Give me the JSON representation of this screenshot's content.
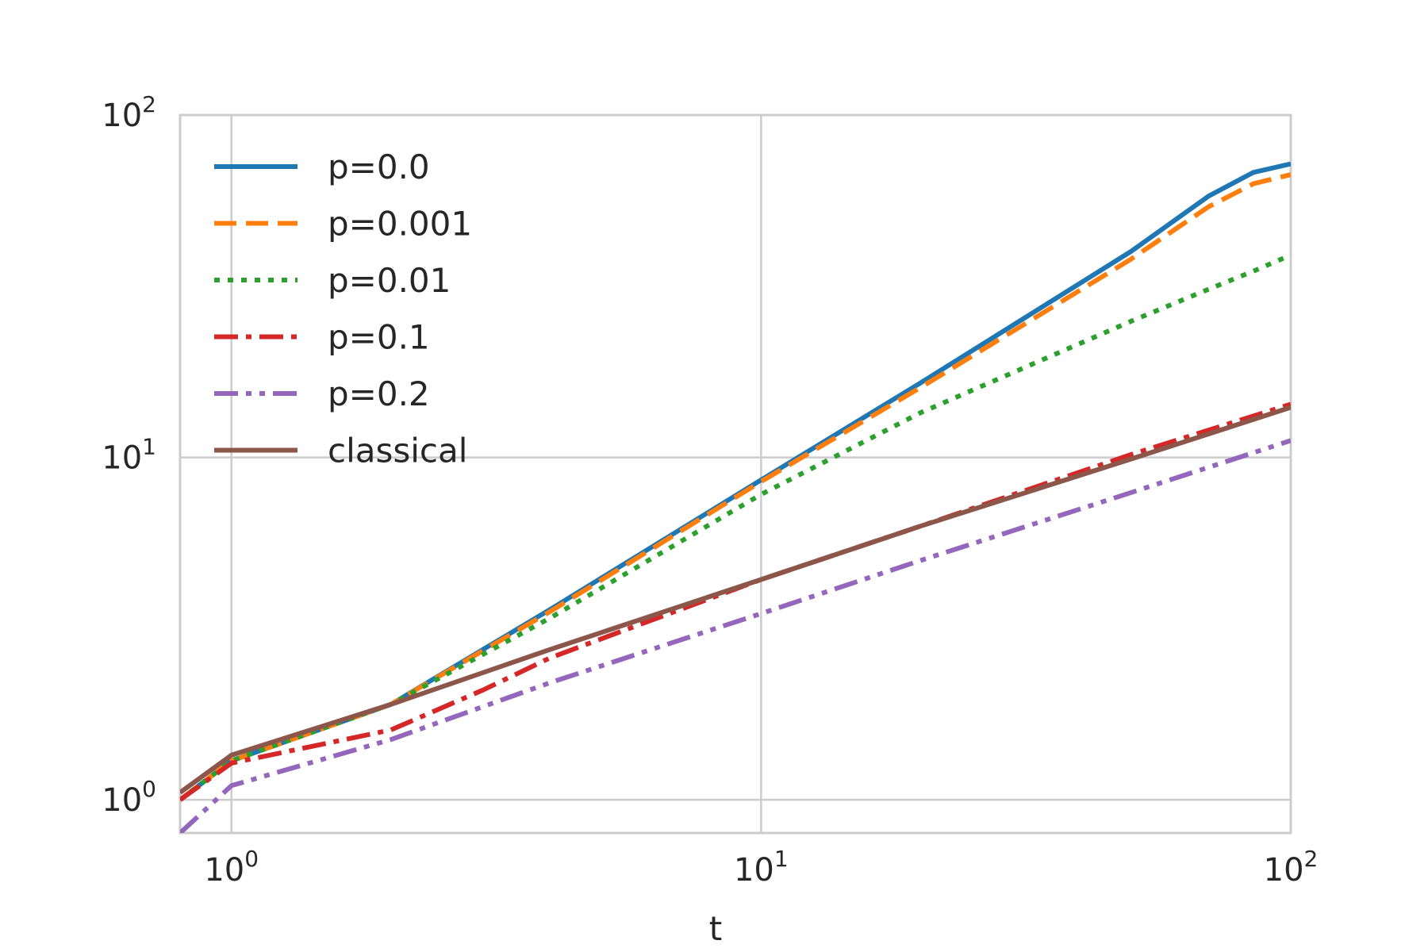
{
  "chart_data": {
    "type": "line",
    "title": "",
    "xlabel": "t",
    "ylabel": "",
    "x_scale": "log",
    "y_scale": "log",
    "xlim": [
      0.8,
      100
    ],
    "ylim": [
      0.8,
      100
    ],
    "x_tick_labels": [
      {
        "base": "10",
        "exp": "0",
        "value": 1
      },
      {
        "base": "10",
        "exp": "1",
        "value": 10
      },
      {
        "base": "10",
        "exp": "2",
        "value": 100
      }
    ],
    "y_tick_labels": [
      {
        "base": "10",
        "exp": "0",
        "value": 1
      },
      {
        "base": "10",
        "exp": "1",
        "value": 10
      },
      {
        "base": "10",
        "exp": "2",
        "value": 100
      }
    ],
    "grid": true,
    "legend_position": "upper-left",
    "series": [
      {
        "name": "p=0.0",
        "color": "#1f77b4",
        "style": "solid",
        "points": [
          [
            0.8,
            1.0
          ],
          [
            1,
            1.3
          ],
          [
            2,
            1.9
          ],
          [
            4,
            3.6
          ],
          [
            10,
            8.6
          ],
          [
            20,
            16.5
          ],
          [
            50,
            40
          ],
          [
            70,
            58
          ],
          [
            85,
            68
          ],
          [
            100,
            72
          ]
        ]
      },
      {
        "name": "p=0.001",
        "color": "#ff7f0e",
        "style": "dashed",
        "points": [
          [
            0.8,
            1.0
          ],
          [
            1,
            1.3
          ],
          [
            2,
            1.9
          ],
          [
            4,
            3.55
          ],
          [
            10,
            8.5
          ],
          [
            20,
            16
          ],
          [
            50,
            38
          ],
          [
            70,
            54
          ],
          [
            85,
            63
          ],
          [
            100,
            67
          ]
        ]
      },
      {
        "name": "p=0.01",
        "color": "#2ca02c",
        "style": "dotted",
        "points": [
          [
            0.8,
            1.0
          ],
          [
            1,
            1.3
          ],
          [
            2,
            1.9
          ],
          [
            4,
            3.4
          ],
          [
            10,
            7.8
          ],
          [
            20,
            13.5
          ],
          [
            50,
            25
          ],
          [
            70,
            31
          ],
          [
            85,
            35
          ],
          [
            100,
            39
          ]
        ]
      },
      {
        "name": "p=0.1",
        "color": "#d62728",
        "style": "dashdot",
        "points": [
          [
            0.8,
            1.0
          ],
          [
            1,
            1.28
          ],
          [
            2,
            1.6
          ],
          [
            3,
            2.1
          ],
          [
            4,
            2.6
          ],
          [
            10,
            4.4
          ],
          [
            20,
            6.3
          ],
          [
            50,
            10.2
          ],
          [
            100,
            14.3
          ]
        ]
      },
      {
        "name": "p=0.2",
        "color": "#9467bd",
        "style": "dashdotdot",
        "points": [
          [
            0.8,
            0.8
          ],
          [
            1,
            1.1
          ],
          [
            2,
            1.5
          ],
          [
            4,
            2.2
          ],
          [
            10,
            3.5
          ],
          [
            20,
            5.0
          ],
          [
            50,
            7.9
          ],
          [
            100,
            11.2
          ]
        ]
      },
      {
        "name": "classical",
        "color": "#8c564b",
        "style": "solid",
        "points": [
          [
            0.8,
            1.05
          ],
          [
            1,
            1.35
          ],
          [
            2,
            1.9
          ],
          [
            4,
            2.75
          ],
          [
            10,
            4.4
          ],
          [
            20,
            6.3
          ],
          [
            50,
            9.9
          ],
          [
            100,
            14
          ]
        ]
      }
    ]
  }
}
